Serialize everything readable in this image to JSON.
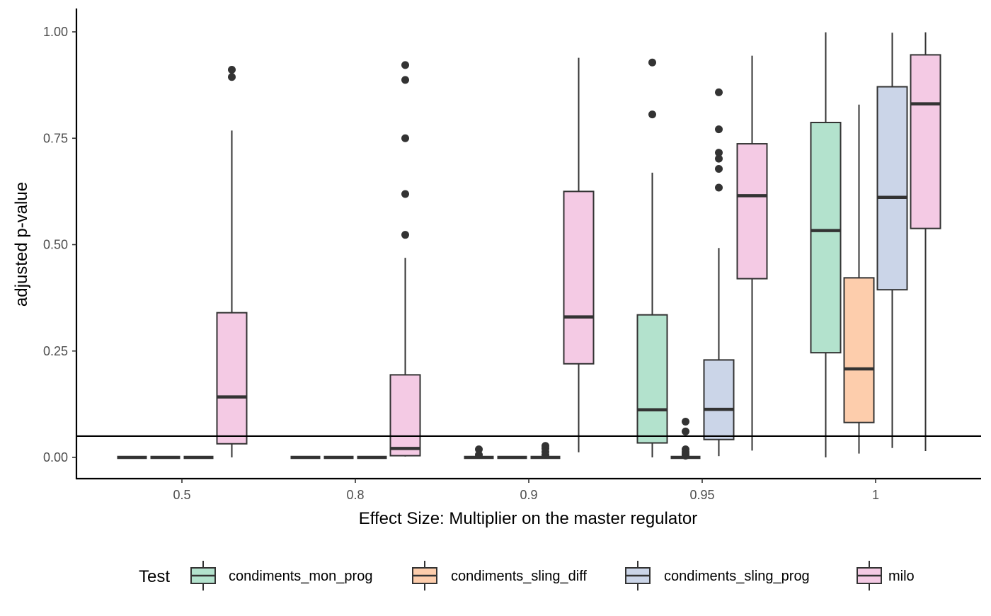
{
  "chart_data": {
    "type": "box",
    "title": "",
    "xlabel": "Effect Size: Multiplier on the master regulator",
    "ylabel": "adjusted p-value",
    "ylim": [
      -0.05,
      1.05
    ],
    "yticks": [
      0.0,
      0.25,
      0.5,
      0.75,
      1.0
    ],
    "ytick_labels": [
      "0.00",
      "0.25",
      "0.50",
      "0.75",
      "1.00"
    ],
    "categories": [
      "0.5",
      "0.8",
      "0.9",
      "0.95",
      "1"
    ],
    "reference_line": 0.05,
    "grid": false,
    "legend": {
      "title": "Test",
      "position": "bottom",
      "entries": [
        "condiments_mon_prog",
        "condiments_sling_diff",
        "condiments_sling_prog",
        "milo"
      ]
    },
    "series": [
      {
        "name": "condiments_mon_prog",
        "color": "#b3e2cd",
        "boxes": [
          {
            "min": 0,
            "q1": 0,
            "median": 0,
            "q3": 0,
            "max": 0,
            "outliers": []
          },
          {
            "min": 0,
            "q1": 0,
            "median": 0,
            "q3": 0,
            "max": 0,
            "outliers": []
          },
          {
            "min": 0,
            "q1": 0,
            "median": 0,
            "q3": 0,
            "max": 0,
            "outliers": [
              0.019,
              0.006
            ]
          },
          {
            "min": 0.0,
            "q1": 0.034,
            "median": 0.112,
            "q3": 0.335,
            "max": 0.669,
            "outliers": [
              0.806,
              0.928
            ]
          },
          {
            "min": 0.0,
            "q1": 0.246,
            "median": 0.533,
            "q3": 0.787,
            "max": 0.999,
            "outliers": []
          }
        ]
      },
      {
        "name": "condiments_sling_diff",
        "color": "#fdcdac",
        "boxes": [
          {
            "min": 0,
            "q1": 0,
            "median": 0,
            "q3": 0,
            "max": 0,
            "outliers": []
          },
          {
            "min": 0,
            "q1": 0,
            "median": 0,
            "q3": 0,
            "max": 0,
            "outliers": []
          },
          {
            "min": 0,
            "q1": 0,
            "median": 0,
            "q3": 0,
            "max": 0,
            "outliers": []
          },
          {
            "min": 0,
            "q1": 0,
            "median": 0,
            "q3": 0,
            "max": 0,
            "outliers": [
              0.084,
              0.061,
              0.019,
              0.013,
              0.008,
              0.004
            ]
          },
          {
            "min": 0.009,
            "q1": 0.082,
            "median": 0.208,
            "q3": 0.422,
            "max": 0.829,
            "outliers": []
          }
        ]
      },
      {
        "name": "condiments_sling_prog",
        "color": "#cbd5e8",
        "boxes": [
          {
            "min": 0,
            "q1": 0,
            "median": 0,
            "q3": 0,
            "max": 0,
            "outliers": []
          },
          {
            "min": 0,
            "q1": 0,
            "median": 0,
            "q3": 0,
            "max": 0,
            "outliers": []
          },
          {
            "min": 0,
            "q1": 0,
            "median": 0,
            "q3": 0,
            "max": 0,
            "outliers": [
              0.027,
              0.021,
              0.013,
              0.006
            ]
          },
          {
            "min": 0.003,
            "q1": 0.042,
            "median": 0.113,
            "q3": 0.229,
            "max": 0.492,
            "outliers": [
              0.634,
              0.678,
              0.702,
              0.716,
              0.771,
              0.858
            ]
          },
          {
            "min": 0.022,
            "q1": 0.394,
            "median": 0.611,
            "q3": 0.871,
            "max": 0.998,
            "outliers": []
          }
        ]
      },
      {
        "name": "milo",
        "color": "#f4cae4",
        "boxes": [
          {
            "min": 0.0,
            "q1": 0.032,
            "median": 0.142,
            "q3": 0.34,
            "max": 0.768,
            "outliers": [
              0.894,
              0.911
            ]
          },
          {
            "min": 0.002,
            "q1": 0.004,
            "median": 0.021,
            "q3": 0.194,
            "max": 0.469,
            "outliers": [
              0.523,
              0.619,
              0.75,
              0.887,
              0.922
            ]
          },
          {
            "min": 0.012,
            "q1": 0.22,
            "median": 0.33,
            "q3": 0.625,
            "max": 0.939,
            "outliers": []
          },
          {
            "min": 0.016,
            "q1": 0.42,
            "median": 0.615,
            "q3": 0.737,
            "max": 0.944,
            "outliers": []
          },
          {
            "min": 0.015,
            "q1": 0.538,
            "median": 0.831,
            "q3": 0.946,
            "max": 0.999,
            "outliers": []
          }
        ]
      }
    ]
  }
}
